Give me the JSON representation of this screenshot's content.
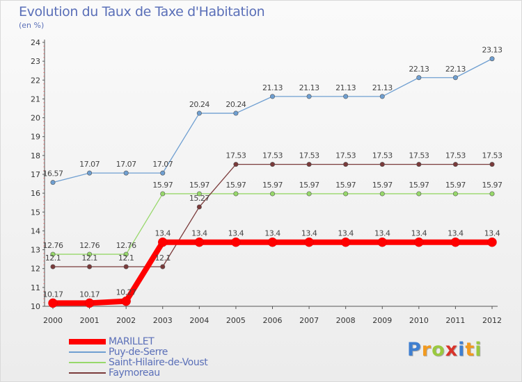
{
  "chart_data": {
    "type": "line",
    "title": "Evolution du Taux de Taxe d'Habitation",
    "subtitle": "(en %)",
    "x": [
      "2000",
      "2001",
      "2002",
      "2003",
      "2004",
      "2005",
      "2006",
      "2007",
      "2008",
      "2009",
      "2010",
      "2011",
      "2012"
    ],
    "ylim": [
      10,
      24
    ],
    "yticks": [
      10,
      11,
      12,
      13,
      14,
      15,
      16,
      17,
      18,
      19,
      20,
      21,
      22,
      23,
      24
    ],
    "grid": false,
    "legend_position": "bottom-left",
    "series": [
      {
        "name": "MARILLET",
        "color": "#ff0000",
        "values": [
          10.17,
          10.17,
          10.27,
          13.4,
          13.4,
          13.4,
          13.4,
          13.4,
          13.4,
          13.4,
          13.4,
          13.4,
          13.4
        ],
        "labels": [
          "10.17",
          "10.17",
          "10.27",
          "13.4",
          "13.4",
          "13.4",
          "13.4",
          "13.4",
          "13.4",
          "13.4",
          "13.4",
          "13.4",
          "13.4"
        ]
      },
      {
        "name": "Puy-de-Serre",
        "color": "#6f9fd1",
        "values": [
          16.57,
          17.07,
          17.07,
          17.07,
          20.24,
          20.24,
          21.13,
          21.13,
          21.13,
          21.13,
          22.13,
          22.13,
          23.13
        ],
        "labels": [
          "16.57",
          "17.07",
          "17.07",
          "17.07",
          "20.24",
          "20.24",
          "21.13",
          "21.13",
          "21.13",
          "21.13",
          "22.13",
          "22.13",
          "23.13"
        ]
      },
      {
        "name": "Saint-Hilaire-de-Voust",
        "color": "#97d86a",
        "values": [
          12.76,
          12.76,
          12.76,
          15.97,
          15.97,
          15.97,
          15.97,
          15.97,
          15.97,
          15.97,
          15.97,
          15.97,
          15.97
        ],
        "labels": [
          "12.76",
          "12.76",
          "12.76",
          "15.97",
          "15.97",
          "15.97",
          "15.97",
          "15.97",
          "15.97",
          "15.97",
          "15.97",
          "15.97",
          "15.97"
        ]
      },
      {
        "name": "Faymoreau",
        "color": "#7a3a3a",
        "values": [
          12.1,
          12.1,
          12.1,
          12.1,
          15.27,
          17.53,
          17.53,
          17.53,
          17.53,
          17.53,
          17.53,
          17.53,
          17.53
        ],
        "labels": [
          "12.1",
          "12.1",
          "12.1",
          "12.1",
          "15.27",
          "17.53",
          "17.53",
          "17.53",
          "17.53",
          "17.53",
          "17.53",
          "17.53",
          "17.53"
        ]
      }
    ]
  },
  "branding": {
    "logo_letters": [
      "P",
      "r",
      "o",
      "x",
      "i",
      "t",
      "i"
    ]
  }
}
